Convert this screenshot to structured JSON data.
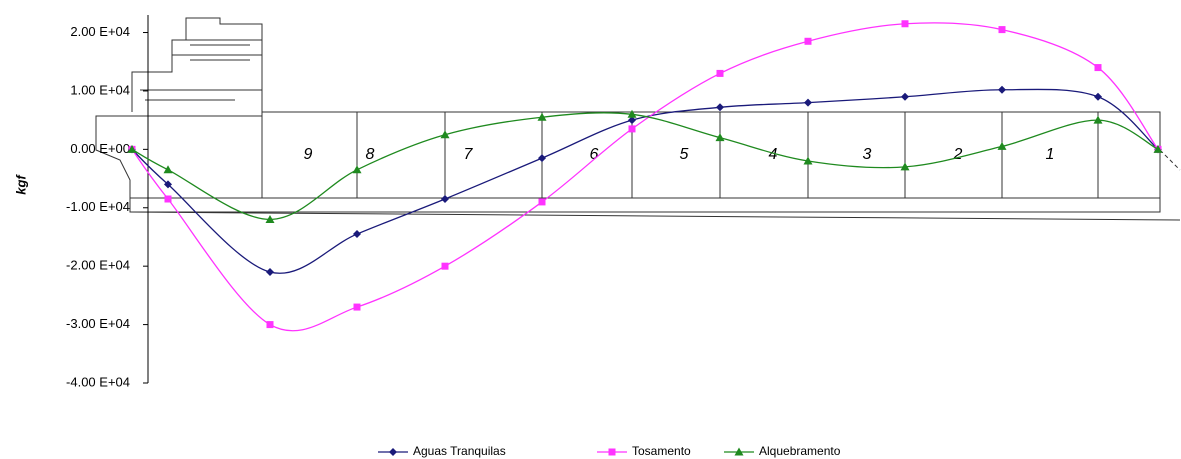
{
  "chart_data": {
    "type": "line",
    "y_label": "kgf",
    "categories": [
      null,
      null,
      null,
      null,
      null,
      null,
      null,
      null,
      null,
      null,
      null,
      null,
      null
    ],
    "series": [
      {
        "name": "Aguas Tranquilas",
        "color": "#1a1a7a",
        "marker": "diamond",
        "values": [
          0,
          -6000,
          -21000,
          -14500,
          -8500,
          -1500,
          5000,
          7200,
          8000,
          9000,
          10200,
          9000,
          0
        ]
      },
      {
        "name": "Tosamento",
        "color": "#ff33ff",
        "marker": "square",
        "values": [
          0,
          -8500,
          -30000,
          -27000,
          -20000,
          -9000,
          3500,
          13000,
          18500,
          21500,
          20500,
          14000,
          0
        ]
      },
      {
        "name": "Alquebramento",
        "color": "#1f8a1f",
        "marker": "triangle",
        "values": [
          0,
          -3500,
          -12000,
          -3500,
          2500,
          5500,
          6000,
          2000,
          -2000,
          -3000,
          500,
          5000,
          0
        ]
      }
    ],
    "ylim": [
      -40000,
      23000
    ],
    "yticks": [
      {
        "value": 20000,
        "label": "2.00 E+04"
      },
      {
        "value": 10000,
        "label": "1.00 E+04"
      },
      {
        "value": 0,
        "label": "0.00 E+00"
      },
      {
        "value": -10000,
        "label": "-1.00 E+04"
      },
      {
        "value": -20000,
        "label": "-2.00 E+04"
      },
      {
        "value": -30000,
        "label": "-3.00 E+04"
      },
      {
        "value": -40000,
        "label": "-4.00 E+04"
      }
    ],
    "annotations": [
      "9",
      "8",
      "7",
      "6",
      "5",
      "4",
      "3",
      "2",
      "1"
    ],
    "legend": "bottom"
  }
}
